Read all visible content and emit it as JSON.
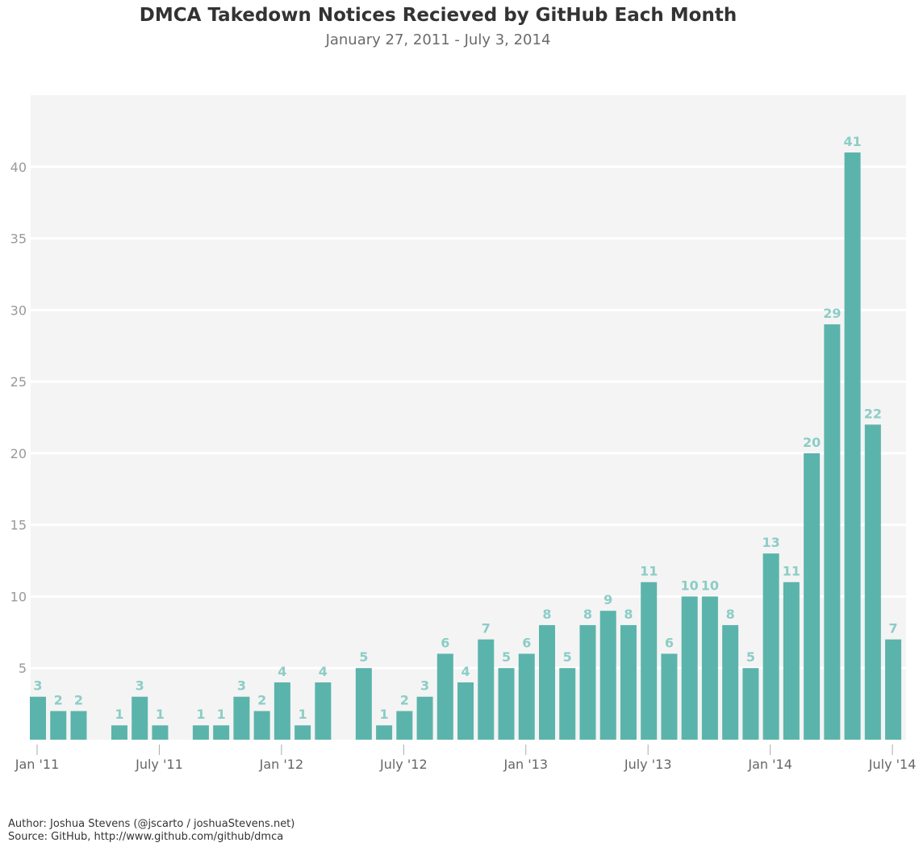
{
  "chart_data": {
    "type": "bar",
    "title": "DMCA Takedown Notices Recieved by GitHub Each Month",
    "subtitle": "January 27, 2011 - July 3, 2014",
    "xlabel": "",
    "ylabel": "",
    "ylim": [
      0,
      45
    ],
    "grid": true,
    "legend": "none",
    "yticks": [
      5,
      10,
      15,
      20,
      25,
      30,
      35,
      40
    ],
    "xticks": [
      {
        "label": "Jan '11",
        "index": 0
      },
      {
        "label": "July '11",
        "index": 6
      },
      {
        "label": "Jan '12",
        "index": 12
      },
      {
        "label": "July '12",
        "index": 18
      },
      {
        "label": "Jan '13",
        "index": 24
      },
      {
        "label": "July '13",
        "index": 30
      },
      {
        "label": "Jan '14",
        "index": 36
      },
      {
        "label": "July '14",
        "index": 42
      }
    ],
    "categories": [
      "Jan 2011",
      "Feb 2011",
      "Mar 2011",
      "Apr 2011",
      "May 2011",
      "Jun 2011",
      "Jul 2011",
      "Aug 2011",
      "Sep 2011",
      "Oct 2011",
      "Nov 2011",
      "Dec 2011",
      "Jan 2012",
      "Feb 2012",
      "Mar 2012",
      "Apr 2012",
      "May 2012",
      "Jun 2012",
      "Jul 2012",
      "Aug 2012",
      "Sep 2012",
      "Oct 2012",
      "Nov 2012",
      "Dec 2012",
      "Jan 2013",
      "Feb 2013",
      "Mar 2013",
      "Apr 2013",
      "May 2013",
      "Jun 2013",
      "Jul 2013",
      "Aug 2013",
      "Sep 2013",
      "Oct 2013",
      "Nov 2013",
      "Dec 2013",
      "Jan 2014",
      "Feb 2014",
      "Mar 2014",
      "Apr 2014",
      "May 2014",
      "Jun 2014",
      "Jul 2014"
    ],
    "values": [
      3,
      2,
      2,
      0,
      1,
      3,
      1,
      0,
      1,
      1,
      3,
      2,
      4,
      1,
      4,
      0,
      5,
      1,
      2,
      3,
      6,
      4,
      7,
      5,
      6,
      8,
      5,
      8,
      9,
      8,
      11,
      6,
      10,
      10,
      8,
      5,
      13,
      11,
      20,
      29,
      41,
      22,
      7
    ],
    "colors": {
      "bar": "#5bb4ab",
      "label": "#8ccdc6",
      "plot_bg": "#f4f4f4",
      "grid": "#ffffff",
      "tick_text": "#999999",
      "x_tick_text": "#666666"
    }
  },
  "footer": {
    "author": "Author: Joshua Stevens (@jscarto / joshuaStevens.net)",
    "source": "Source: GitHub, http://www.github.com/github/dmca"
  }
}
